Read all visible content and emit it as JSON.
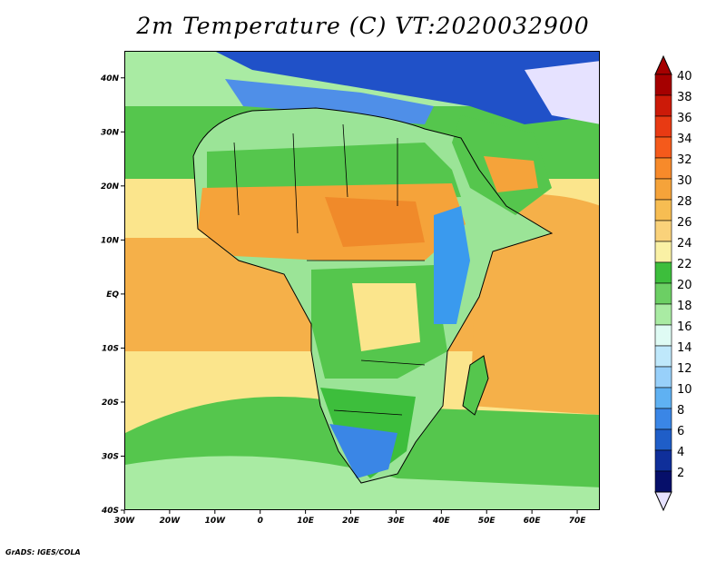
{
  "title": "2m Temperature (C) VT:2020032900",
  "credit": "GrADS: IGES/COLA",
  "map": {
    "lon_range": [
      -30,
      75
    ],
    "lat_range": [
      -40,
      45
    ],
    "x_ticks": [
      "30W",
      "20W",
      "10W",
      "0",
      "10E",
      "20E",
      "30E",
      "40E",
      "50E",
      "60E",
      "70E"
    ],
    "y_ticks": [
      "40N",
      "30N",
      "20N",
      "10N",
      "EQ",
      "10S",
      "20S",
      "30S",
      "40S"
    ],
    "regions": [
      {
        "name": "ocean-tropical",
        "color": "#f5b049"
      },
      {
        "name": "ocean-subtropical",
        "color": "#fbe58c"
      },
      {
        "name": "ocean-cool",
        "color": "#55c64d"
      },
      {
        "name": "ocean-south",
        "color": "#a9eba3"
      },
      {
        "name": "mediterranean",
        "color": "#4f8fe8"
      },
      {
        "name": "europe",
        "color": "#2051c8"
      },
      {
        "name": "sahara-north",
        "color": "#9be497"
      },
      {
        "name": "sahel-hot",
        "color": "#f08a2a"
      },
      {
        "name": "highlands",
        "color": "#3a9aee"
      }
    ]
  },
  "colorbar": {
    "levels": [
      "40",
      "38",
      "36",
      "34",
      "32",
      "30",
      "28",
      "26",
      "24",
      "22",
      "20",
      "18",
      "16",
      "14",
      "12",
      "10",
      "8",
      "6",
      "4",
      "2"
    ],
    "colors": [
      "#a50000",
      "#cc1a08",
      "#e83a13",
      "#f55a1b",
      "#f78a2a",
      "#f5a33a",
      "#f7bd52",
      "#fad27a",
      "#faf1a5",
      "#3dbe3c",
      "#6ccf64",
      "#a9eba3",
      "#dffbf4",
      "#bfe8fb",
      "#98d0fa",
      "#5fb1f2",
      "#3a86e6",
      "#1f5ec8",
      "#0f2f9a",
      "#060f6a"
    ],
    "over_color": "#a50000",
    "under_color": "#e6e2ff"
  }
}
